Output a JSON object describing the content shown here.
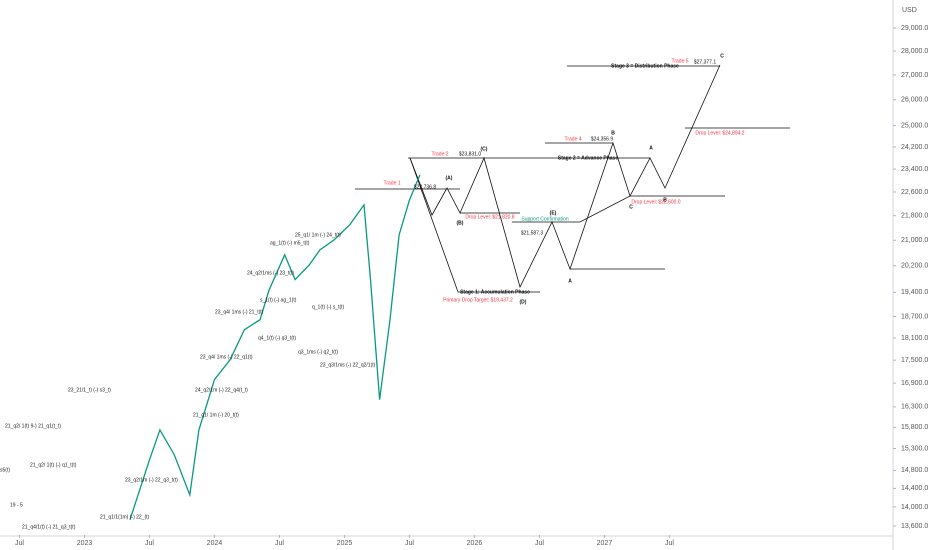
{
  "currency": "USD",
  "chart_data": {
    "type": "line",
    "log_scale": true,
    "x": [
      2023.35,
      2023.5,
      2023.58,
      2023.69,
      2023.81,
      2023.88,
      2024.0,
      2024.12,
      2024.23,
      2024.35,
      2024.42,
      2024.54,
      2024.62,
      2024.73,
      2024.81,
      2024.92,
      2025.04,
      2025.15,
      2025.2,
      2025.27,
      2025.35,
      2025.42,
      2025.5,
      2025.58
    ],
    "series": [
      {
        "color": "#089981",
        "values": [
          13730,
          15040,
          15740,
          15160,
          14260,
          15740,
          16990,
          17510,
          18330,
          18610,
          19470,
          20540,
          19780,
          20230,
          20690,
          21010,
          21500,
          22160,
          19780,
          16480,
          18610,
          21170,
          22330,
          23190
        ]
      }
    ],
    "xlim": [
      2022.35,
      2029.22
    ],
    "xticks": [
      {
        "value": 2022.5,
        "label": "Jul"
      },
      2023,
      {
        "value": 2023.5,
        "label": "Jul"
      },
      2024,
      {
        "value": 2024.5,
        "label": "Jul"
      },
      2025,
      {
        "value": 2025.5,
        "label": "Jul"
      },
      2026,
      {
        "value": 2026.5,
        "label": "Jul"
      },
      2027,
      {
        "value": 2027.5,
        "label": "Jul"
      }
    ],
    "ylim": [
      13415,
      30260
    ],
    "yticks": [
      {
        "value": 29000,
        "label": "29,000.0"
      },
      {
        "value": 28000,
        "label": "28,000.0"
      },
      {
        "value": 27000,
        "label": "27,000.0"
      },
      {
        "value": 26000,
        "label": "26,000.0"
      },
      {
        "value": 25000,
        "label": "25,000.0"
      },
      {
        "value": 24200,
        "label": "24,200.0"
      },
      {
        "value": 23400,
        "label": "23,400.0"
      },
      {
        "value": 22600,
        "label": "22,600.0"
      },
      {
        "value": 21800,
        "label": "21,800.0"
      },
      {
        "value": 21000,
        "label": "21,000.0"
      },
      {
        "value": 20200,
        "label": "20,200.0"
      },
      {
        "value": 19400,
        "label": "19,400.0"
      },
      {
        "value": 18700,
        "label": "18,700.0"
      },
      {
        "value": 18100,
        "label": "18,100.0"
      },
      {
        "value": 17500,
        "label": "17,500.0"
      },
      {
        "value": 16900,
        "label": "16,900.0"
      },
      {
        "value": 16300,
        "label": "16,300.0"
      },
      {
        "value": 15800,
        "label": "15,800.0"
      },
      {
        "value": 15300,
        "label": "15,300.0"
      },
      {
        "value": 14800,
        "label": "14,800.0"
      },
      {
        "value": 14400,
        "label": "14,400.0"
      },
      {
        "value": 14000,
        "label": "14,000.0"
      },
      {
        "value": 13600,
        "label": "13,600.0"
      }
    ],
    "projection_labels": [
      "Trade 1",
      "$22,736.8",
      "(A)",
      "(B)",
      "Trade 2",
      "$23,831.0",
      "(C)",
      "Stage 2 = Advance Phase",
      "Drop Level: $21,820.8",
      "Support Confirmation",
      "(E)",
      "$21,587.3",
      "Stage 1: Accumulation Phase",
      "Primary Drop Target: $19,437.2",
      "(D)",
      "A",
      "Trade 4",
      "$24,356.9",
      "B",
      "A",
      "C",
      "B",
      "Drop Level: $22,600.0",
      "Drop Level: $24,894.2",
      "Trade 5",
      "$27,377.1",
      "C",
      "Stage 3 = Distribution Phase"
    ],
    "annotations": [
      "21_q4/1(t) (-) 21_q3_t(t)",
      "21_q1/1(1m) (-) 22_(t)",
      "19 - 5",
      "23_q2/1m (-) 22_q3_t(t)",
      "21_q2/ 1(t) (-) q1_t(t)",
      "s5(t)",
      "21_q2/ 1(t) 9-) 21_q1(t_t)",
      "21_q1/ 1m (-) 20_t(t)",
      "23_21/1_t) (-) s3_t)",
      "24_q2/1m (-) 22_q4(t_t)",
      "23_q4/ 1ms (-) 22_q1(t)",
      "23_q4/ 1ms (-) 21_t(t)",
      "q4_1(t) (-) q3_t(t)",
      "q3_1ms (-) q2_t(t)",
      "23_q3/1ms (-) 22_q2/1(t)",
      "24_q2/1ms (-) 23_t(t)",
      "s_1(t) (-) ag_1(t)",
      "ag_1(t) (-) m5_t(t)",
      "25_q1/ 1m (-) 24_t(t)",
      "q_1(t) (-) s_t(t)"
    ]
  }
}
